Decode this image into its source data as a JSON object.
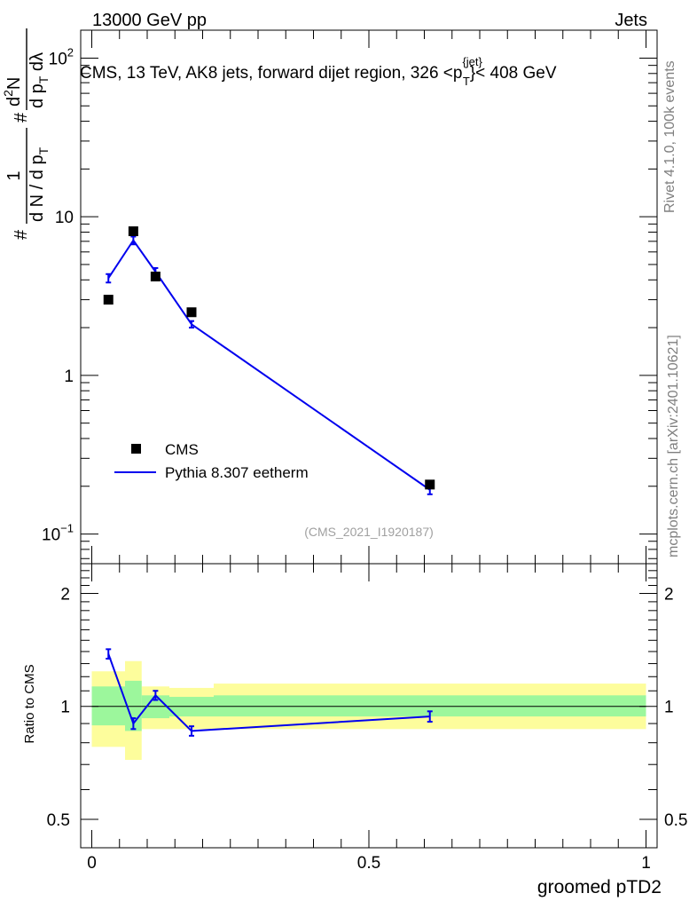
{
  "header": {
    "top_left": "13000 GeV pp",
    "top_right": "Jets"
  },
  "side_labels": {
    "rivet": "Rivet 4.1.0,  100k events",
    "mcplots": "mcplots.cern.ch [arXiv:2401.10621]"
  },
  "chart_data": [
    {
      "type": "scatter",
      "panel": "main",
      "title": "CMS, 13 TeV, AK8 jets, forward dijet region, 326 <p",
      "title_sup": "{jet}",
      "title_sub": "T",
      "title_tail": "}< 408 GeV",
      "analysis_tag": "(CMS_2021_I1920187)",
      "ylabel_parts": {
        "hash": "#",
        "frac1_num": "1",
        "frac1_den": "d N / d p",
        "frac1_den_sub": "T",
        "hash2": "#",
        "frac2_num": "d",
        "frac2_num_sup": "2",
        "frac2_num_tail": "N",
        "frac2_den": "d p",
        "frac2_den_sub": "T",
        "frac2_den_tail": " dλ"
      },
      "yscale": "log",
      "ylim": [
        0.065,
        150
      ],
      "xlim": [
        -0.02,
        1.02
      ],
      "y_ticks": [
        {
          "value": 0.1,
          "base": "10",
          "exp": "−1"
        },
        {
          "value": 1,
          "label": "1"
        },
        {
          "value": 10,
          "label": "10"
        },
        {
          "value": 100,
          "base": "10",
          "exp": "2"
        }
      ],
      "legend": {
        "placement": "bottom-left",
        "entries": [
          "CMS",
          "Pythia 8.307 eetherm"
        ]
      },
      "series": [
        {
          "name": "CMS",
          "style": "markers",
          "color": "#000000",
          "x": [
            0.03,
            0.075,
            0.115,
            0.18,
            0.61
          ],
          "y": [
            3.0,
            8.1,
            4.2,
            2.5,
            0.205
          ]
        },
        {
          "name": "Pythia 8.307 eetherm",
          "style": "line",
          "color": "#0000ee",
          "x": [
            0.03,
            0.075,
            0.115,
            0.18,
            0.61
          ],
          "y": [
            4.1,
            7.1,
            4.5,
            2.1,
            0.19
          ],
          "yerr": [
            0.25,
            0.4,
            0.25,
            0.1,
            0.012
          ]
        }
      ]
    },
    {
      "type": "line",
      "panel": "ratio",
      "ylabel": "Ratio to CMS",
      "xlabel": "groomed pTD2",
      "yscale": "log",
      "ylim": [
        0.42,
        2.4
      ],
      "xlim": [
        -0.02,
        1.02
      ],
      "x_ticks": [
        {
          "value": 0,
          "label": "0"
        },
        {
          "value": 0.5,
          "label": "0.5"
        },
        {
          "value": 1,
          "label": "1"
        }
      ],
      "y_ticks": [
        {
          "value": 0.5,
          "label": "0.5"
        },
        {
          "value": 1,
          "label": "1"
        },
        {
          "value": 2,
          "label": "2"
        }
      ],
      "bands": [
        {
          "x0": 0.0,
          "x1": 0.06,
          "inner": [
            0.89,
            1.13
          ],
          "outer": [
            0.78,
            1.24
          ]
        },
        {
          "x0": 0.06,
          "x1": 0.09,
          "inner": [
            0.86,
            1.17
          ],
          "outer": [
            0.72,
            1.32
          ]
        },
        {
          "x0": 0.09,
          "x1": 0.14,
          "inner": [
            0.93,
            1.07
          ],
          "outer": [
            0.87,
            1.13
          ]
        },
        {
          "x0": 0.14,
          "x1": 0.22,
          "inner": [
            0.94,
            1.06
          ],
          "outer": [
            0.87,
            1.12
          ]
        },
        {
          "x0": 0.22,
          "x1": 1.0,
          "inner": [
            0.94,
            1.07
          ],
          "outer": [
            0.87,
            1.15
          ]
        }
      ],
      "series": [
        {
          "name": "Pythia 8.307 eetherm",
          "color": "#0000ee",
          "x": [
            0.03,
            0.075,
            0.115,
            0.18,
            0.61
          ],
          "y": [
            1.38,
            0.9,
            1.07,
            0.86,
            0.94
          ],
          "yerr": [
            0.04,
            0.03,
            0.03,
            0.025,
            0.03
          ]
        }
      ],
      "colors": {
        "inner_band": "#9cf79c",
        "outer_band": "#fdfd9c",
        "reference_line": "#000000"
      }
    }
  ]
}
